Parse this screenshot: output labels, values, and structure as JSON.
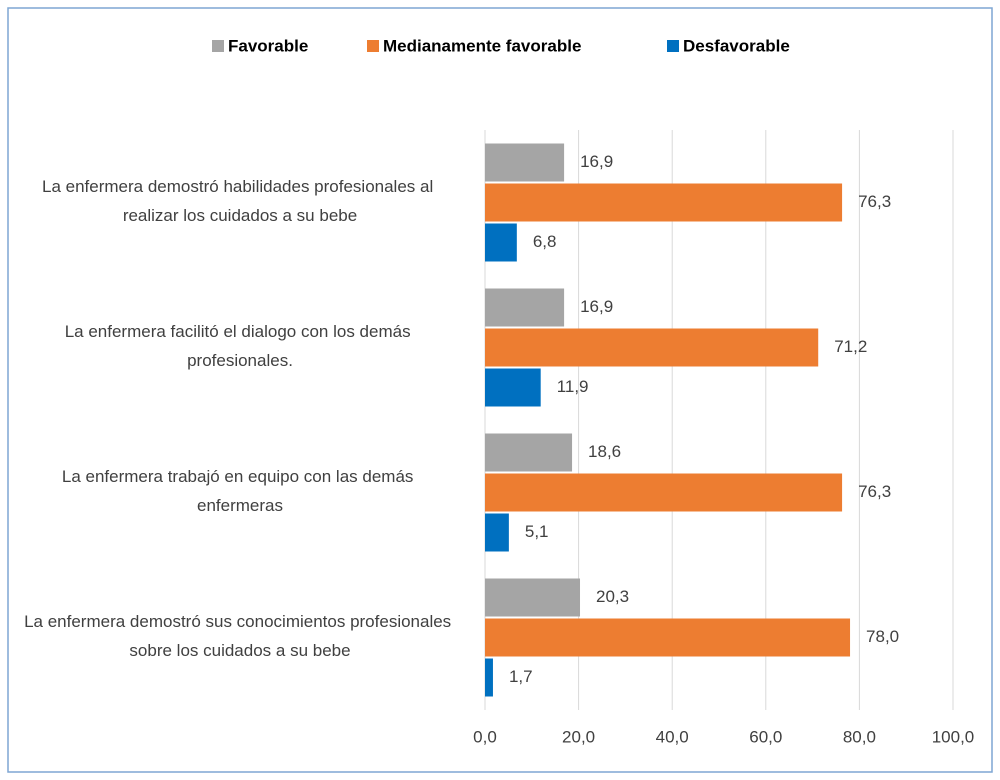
{
  "chart_data": {
    "type": "hbar",
    "categories": [
      "La enfermera demostró habilidades profesionales al realizar los cuidados a su bebe",
      "La enfermera facilitó el dialogo con los demás profesionales.",
      "La enfermera trabajó en equipo con las demás enfermeras",
      "La enfermera demostró sus conocimientos profesionales sobre los cuidados a su bebe"
    ],
    "series": [
      {
        "name": "Favorable",
        "color": "#a5a5a5",
        "values": [
          16.9,
          16.9,
          18.6,
          20.3
        ],
        "value_labels": [
          "16,9",
          "16,9",
          "18,6",
          "20,3"
        ]
      },
      {
        "name": "Medianamente favorable",
        "color": "#ed7d31",
        "values": [
          76.3,
          71.2,
          76.3,
          78.0
        ],
        "value_labels": [
          "76,3",
          "71,2",
          "76,3",
          "78,0"
        ]
      },
      {
        "name": "Desfavorable",
        "color": "#0070c0",
        "values": [
          6.8,
          11.9,
          5.1,
          1.7
        ],
        "value_labels": [
          "6,8",
          "11,9",
          "5,1",
          "1,7"
        ]
      }
    ],
    "xlim": [
      0,
      100
    ],
    "xticks": [
      {
        "value": 0,
        "label": "0,0"
      },
      {
        "value": 20,
        "label": "20,0"
      },
      {
        "value": 40,
        "label": "40,0"
      },
      {
        "value": 60,
        "label": "60,0"
      },
      {
        "value": 80,
        "label": "80,0"
      },
      {
        "value": 100,
        "label": "100,0"
      }
    ],
    "grid": true,
    "legend": "top"
  }
}
